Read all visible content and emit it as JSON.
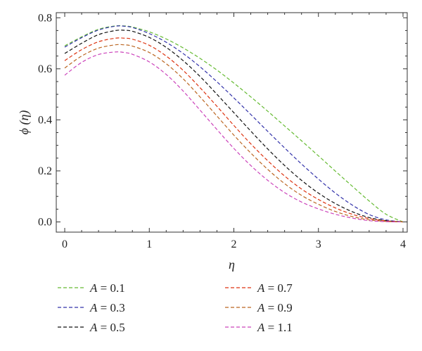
{
  "chart_data": {
    "type": "line",
    "xlabel": "η",
    "ylabel": "ϕ (η)",
    "xlim": [
      -0.1,
      4.05
    ],
    "ylim": [
      -0.04,
      0.82
    ],
    "xticks": [
      "0",
      "1",
      "2",
      "3",
      "4"
    ],
    "yticks": [
      "0.0",
      "0.2",
      "0.4",
      "0.6",
      "0.8"
    ],
    "line_style": "dashed",
    "legend_position": "bottom",
    "x": [
      0,
      0.2,
      0.4,
      0.6,
      0.7,
      0.8,
      1.0,
      1.2,
      1.4,
      1.6,
      1.8,
      2.0,
      2.2,
      2.4,
      2.6,
      2.8,
      3.0,
      3.2,
      3.4,
      3.6,
      3.8,
      4.0
    ],
    "series": [
      {
        "name": "A = 0.1",
        "color": "#66bb33",
        "values": [
          0.69,
          0.725,
          0.755,
          0.768,
          0.768,
          0.764,
          0.745,
          0.717,
          0.682,
          0.641,
          0.595,
          0.544,
          0.49,
          0.434,
          0.376,
          0.318,
          0.259,
          0.199,
          0.14,
          0.082,
          0.03,
          0.0
        ]
      },
      {
        "name": "A = 0.3",
        "color": "#3333aa",
        "values": [
          0.685,
          0.722,
          0.752,
          0.767,
          0.767,
          0.762,
          0.738,
          0.704,
          0.66,
          0.608,
          0.549,
          0.486,
          0.421,
          0.355,
          0.29,
          0.227,
          0.168,
          0.113,
          0.066,
          0.029,
          0.008,
          0.0
        ]
      },
      {
        "name": "A = 0.5",
        "color": "#111111",
        "values": [
          0.66,
          0.7,
          0.734,
          0.75,
          0.751,
          0.747,
          0.723,
          0.684,
          0.632,
          0.57,
          0.5,
          0.428,
          0.356,
          0.286,
          0.221,
          0.163,
          0.113,
          0.072,
          0.04,
          0.017,
          0.005,
          0.0
        ]
      },
      {
        "name": "A = 0.7",
        "color": "#dd3311",
        "values": [
          0.632,
          0.675,
          0.706,
          0.72,
          0.72,
          0.716,
          0.692,
          0.65,
          0.594,
          0.526,
          0.453,
          0.378,
          0.306,
          0.24,
          0.18,
          0.129,
          0.088,
          0.055,
          0.03,
          0.013,
          0.004,
          0.0
        ]
      },
      {
        "name": "A = 0.9",
        "color": "#bb6622",
        "values": [
          0.603,
          0.65,
          0.681,
          0.694,
          0.694,
          0.689,
          0.664,
          0.62,
          0.561,
          0.49,
          0.415,
          0.34,
          0.27,
          0.206,
          0.15,
          0.104,
          0.069,
          0.041,
          0.021,
          0.008,
          0.002,
          0.0
        ]
      },
      {
        "name": "A = 1.1",
        "color": "#cc44bb",
        "values": [
          0.575,
          0.625,
          0.656,
          0.666,
          0.664,
          0.657,
          0.627,
          0.578,
          0.513,
          0.438,
          0.362,
          0.288,
          0.221,
          0.163,
          0.115,
          0.078,
          0.051,
          0.03,
          0.015,
          0.005,
          0.001,
          0.0
        ]
      }
    ]
  }
}
